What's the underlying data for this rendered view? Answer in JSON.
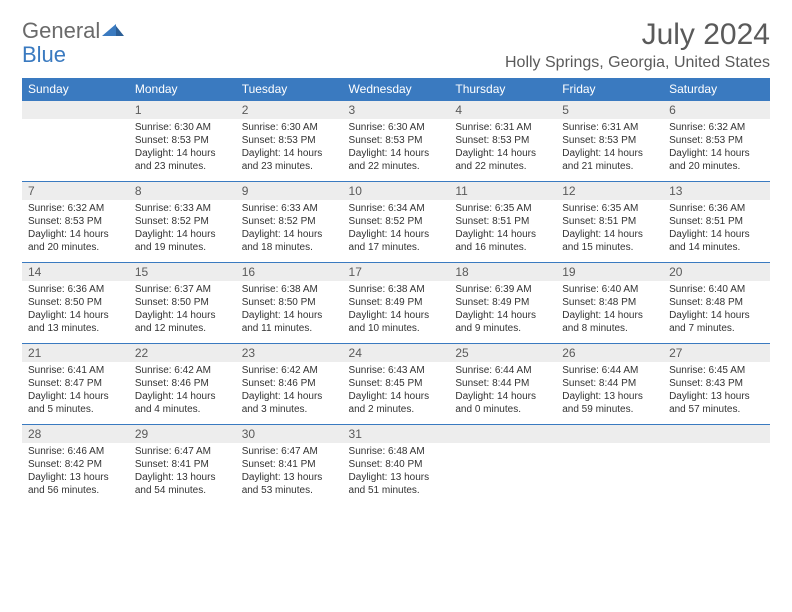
{
  "logo": {
    "text_general": "General",
    "text_blue": "Blue"
  },
  "title": "July 2024",
  "location": "Holly Springs, Georgia, United States",
  "colors": {
    "header_bg": "#3a7ac0",
    "header_text": "#ffffff",
    "daynum_bg": "#ededed",
    "text": "#333333",
    "title_text": "#5a5a5a",
    "border": "#3a7ac0"
  },
  "day_headers": [
    "Sunday",
    "Monday",
    "Tuesday",
    "Wednesday",
    "Thursday",
    "Friday",
    "Saturday"
  ],
  "weeks": [
    [
      {
        "num": "",
        "sunrise": "",
        "sunset": "",
        "daylight": ""
      },
      {
        "num": "1",
        "sunrise": "Sunrise: 6:30 AM",
        "sunset": "Sunset: 8:53 PM",
        "daylight": "Daylight: 14 hours and 23 minutes."
      },
      {
        "num": "2",
        "sunrise": "Sunrise: 6:30 AM",
        "sunset": "Sunset: 8:53 PM",
        "daylight": "Daylight: 14 hours and 23 minutes."
      },
      {
        "num": "3",
        "sunrise": "Sunrise: 6:30 AM",
        "sunset": "Sunset: 8:53 PM",
        "daylight": "Daylight: 14 hours and 22 minutes."
      },
      {
        "num": "4",
        "sunrise": "Sunrise: 6:31 AM",
        "sunset": "Sunset: 8:53 PM",
        "daylight": "Daylight: 14 hours and 22 minutes."
      },
      {
        "num": "5",
        "sunrise": "Sunrise: 6:31 AM",
        "sunset": "Sunset: 8:53 PM",
        "daylight": "Daylight: 14 hours and 21 minutes."
      },
      {
        "num": "6",
        "sunrise": "Sunrise: 6:32 AM",
        "sunset": "Sunset: 8:53 PM",
        "daylight": "Daylight: 14 hours and 20 minutes."
      }
    ],
    [
      {
        "num": "7",
        "sunrise": "Sunrise: 6:32 AM",
        "sunset": "Sunset: 8:53 PM",
        "daylight": "Daylight: 14 hours and 20 minutes."
      },
      {
        "num": "8",
        "sunrise": "Sunrise: 6:33 AM",
        "sunset": "Sunset: 8:52 PM",
        "daylight": "Daylight: 14 hours and 19 minutes."
      },
      {
        "num": "9",
        "sunrise": "Sunrise: 6:33 AM",
        "sunset": "Sunset: 8:52 PM",
        "daylight": "Daylight: 14 hours and 18 minutes."
      },
      {
        "num": "10",
        "sunrise": "Sunrise: 6:34 AM",
        "sunset": "Sunset: 8:52 PM",
        "daylight": "Daylight: 14 hours and 17 minutes."
      },
      {
        "num": "11",
        "sunrise": "Sunrise: 6:35 AM",
        "sunset": "Sunset: 8:51 PM",
        "daylight": "Daylight: 14 hours and 16 minutes."
      },
      {
        "num": "12",
        "sunrise": "Sunrise: 6:35 AM",
        "sunset": "Sunset: 8:51 PM",
        "daylight": "Daylight: 14 hours and 15 minutes."
      },
      {
        "num": "13",
        "sunrise": "Sunrise: 6:36 AM",
        "sunset": "Sunset: 8:51 PM",
        "daylight": "Daylight: 14 hours and 14 minutes."
      }
    ],
    [
      {
        "num": "14",
        "sunrise": "Sunrise: 6:36 AM",
        "sunset": "Sunset: 8:50 PM",
        "daylight": "Daylight: 14 hours and 13 minutes."
      },
      {
        "num": "15",
        "sunrise": "Sunrise: 6:37 AM",
        "sunset": "Sunset: 8:50 PM",
        "daylight": "Daylight: 14 hours and 12 minutes."
      },
      {
        "num": "16",
        "sunrise": "Sunrise: 6:38 AM",
        "sunset": "Sunset: 8:50 PM",
        "daylight": "Daylight: 14 hours and 11 minutes."
      },
      {
        "num": "17",
        "sunrise": "Sunrise: 6:38 AM",
        "sunset": "Sunset: 8:49 PM",
        "daylight": "Daylight: 14 hours and 10 minutes."
      },
      {
        "num": "18",
        "sunrise": "Sunrise: 6:39 AM",
        "sunset": "Sunset: 8:49 PM",
        "daylight": "Daylight: 14 hours and 9 minutes."
      },
      {
        "num": "19",
        "sunrise": "Sunrise: 6:40 AM",
        "sunset": "Sunset: 8:48 PM",
        "daylight": "Daylight: 14 hours and 8 minutes."
      },
      {
        "num": "20",
        "sunrise": "Sunrise: 6:40 AM",
        "sunset": "Sunset: 8:48 PM",
        "daylight": "Daylight: 14 hours and 7 minutes."
      }
    ],
    [
      {
        "num": "21",
        "sunrise": "Sunrise: 6:41 AM",
        "sunset": "Sunset: 8:47 PM",
        "daylight": "Daylight: 14 hours and 5 minutes."
      },
      {
        "num": "22",
        "sunrise": "Sunrise: 6:42 AM",
        "sunset": "Sunset: 8:46 PM",
        "daylight": "Daylight: 14 hours and 4 minutes."
      },
      {
        "num": "23",
        "sunrise": "Sunrise: 6:42 AM",
        "sunset": "Sunset: 8:46 PM",
        "daylight": "Daylight: 14 hours and 3 minutes."
      },
      {
        "num": "24",
        "sunrise": "Sunrise: 6:43 AM",
        "sunset": "Sunset: 8:45 PM",
        "daylight": "Daylight: 14 hours and 2 minutes."
      },
      {
        "num": "25",
        "sunrise": "Sunrise: 6:44 AM",
        "sunset": "Sunset: 8:44 PM",
        "daylight": "Daylight: 14 hours and 0 minutes."
      },
      {
        "num": "26",
        "sunrise": "Sunrise: 6:44 AM",
        "sunset": "Sunset: 8:44 PM",
        "daylight": "Daylight: 13 hours and 59 minutes."
      },
      {
        "num": "27",
        "sunrise": "Sunrise: 6:45 AM",
        "sunset": "Sunset: 8:43 PM",
        "daylight": "Daylight: 13 hours and 57 minutes."
      }
    ],
    [
      {
        "num": "28",
        "sunrise": "Sunrise: 6:46 AM",
        "sunset": "Sunset: 8:42 PM",
        "daylight": "Daylight: 13 hours and 56 minutes."
      },
      {
        "num": "29",
        "sunrise": "Sunrise: 6:47 AM",
        "sunset": "Sunset: 8:41 PM",
        "daylight": "Daylight: 13 hours and 54 minutes."
      },
      {
        "num": "30",
        "sunrise": "Sunrise: 6:47 AM",
        "sunset": "Sunset: 8:41 PM",
        "daylight": "Daylight: 13 hours and 53 minutes."
      },
      {
        "num": "31",
        "sunrise": "Sunrise: 6:48 AM",
        "sunset": "Sunset: 8:40 PM",
        "daylight": "Daylight: 13 hours and 51 minutes."
      },
      {
        "num": "",
        "sunrise": "",
        "sunset": "",
        "daylight": ""
      },
      {
        "num": "",
        "sunrise": "",
        "sunset": "",
        "daylight": ""
      },
      {
        "num": "",
        "sunrise": "",
        "sunset": "",
        "daylight": ""
      }
    ]
  ]
}
